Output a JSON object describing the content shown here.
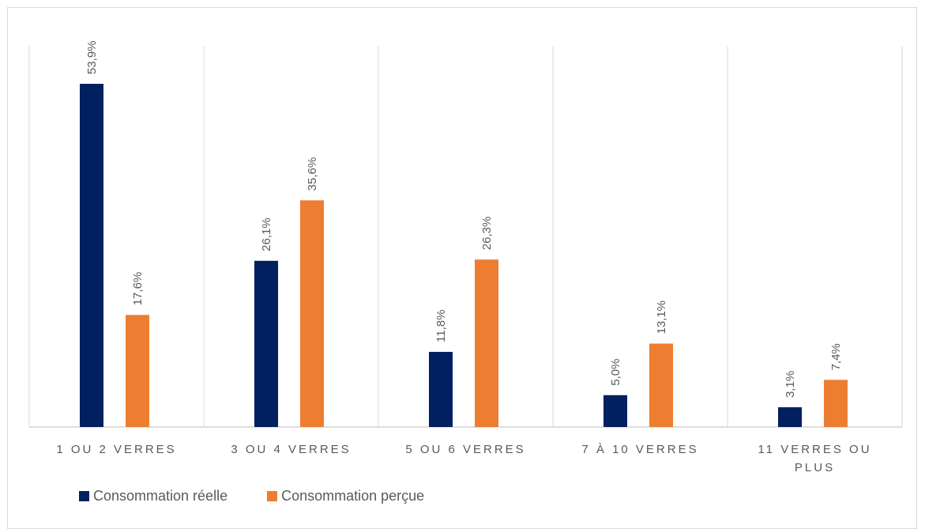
{
  "chart_data": {
    "type": "bar",
    "categories": [
      "1 OU 2 VERRES",
      "3 OU 4 VERRES",
      "5 OU 6 VERRES",
      "7 À 10 VERRES",
      "11 VERRES OU PLUS"
    ],
    "category_lines": [
      [
        "1 OU 2 VERRES"
      ],
      [
        "3 OU 4 VERRES"
      ],
      [
        "5 OU 6 VERRES"
      ],
      [
        "7 À 10 VERRES"
      ],
      [
        "11 VERRES OU",
        "PLUS"
      ]
    ],
    "series": [
      {
        "name": "Consommation réelle",
        "color": "#002060",
        "values": [
          53.9,
          26.1,
          11.8,
          5.0,
          3.1
        ],
        "labels": [
          "53,9%",
          "26,1%",
          "11,8%",
          "5,0%",
          "3,1%"
        ]
      },
      {
        "name": "Consommation perçue",
        "color": "#ED7D31",
        "values": [
          17.6,
          35.6,
          26.3,
          13.1,
          7.4
        ],
        "labels": [
          "17,6%",
          "35,6%",
          "26,3%",
          "13,1%",
          "7,4%"
        ]
      }
    ],
    "ylim": [
      0,
      60
    ],
    "grid": "vertical category separators",
    "legend_position": "bottom-left"
  }
}
